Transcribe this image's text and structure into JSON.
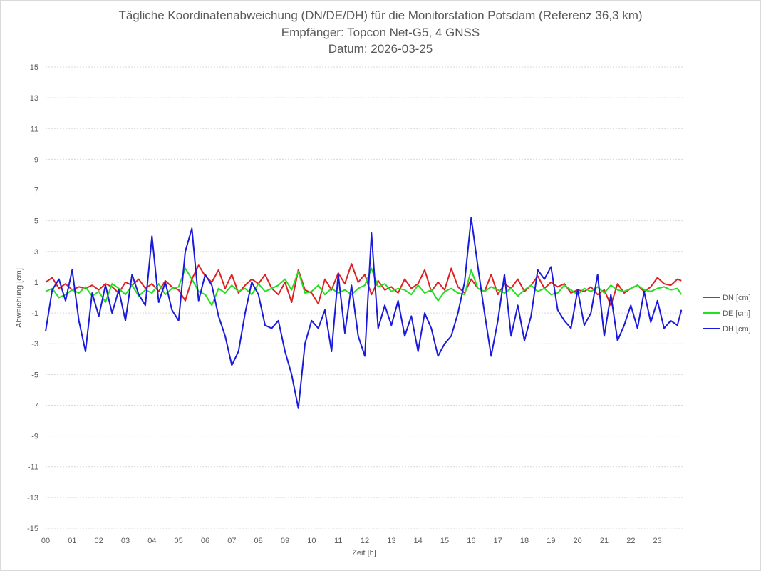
{
  "chart_data": {
    "type": "line",
    "title": "Tägliche Koordinatenabweichung (DN/DE/DH) für die Monitorstation Potsdam (Referenz 36,3 km)",
    "subtitle": "Empfänger: Topcon Net-G5, 4 GNSS",
    "date_line": "Datum: 2026-03-25",
    "xlabel": "Zeit [h]",
    "ylabel": "Abweichung [cm]",
    "xlim": [
      0,
      24
    ],
    "ylim": [
      -15,
      15
    ],
    "y_ticks": [
      15,
      13,
      11,
      9,
      7,
      5,
      3,
      1,
      -1,
      -3,
      -5,
      -7,
      -9,
      -11,
      -13,
      -15
    ],
    "x_tick_labels": [
      "00",
      "01",
      "02",
      "03",
      "04",
      "05",
      "06",
      "07",
      "08",
      "09",
      "10",
      "11",
      "12",
      "13",
      "14",
      "15",
      "16",
      "17",
      "18",
      "19",
      "20",
      "21",
      "22",
      "23"
    ],
    "grid": true,
    "legend_position": "right",
    "x": [
      0,
      0.25,
      0.5,
      0.75,
      1,
      1.25,
      1.5,
      1.75,
      2,
      2.25,
      2.5,
      2.75,
      3,
      3.25,
      3.5,
      3.75,
      4,
      4.25,
      4.5,
      4.75,
      5,
      5.25,
      5.5,
      5.75,
      6,
      6.25,
      6.5,
      6.75,
      7,
      7.25,
      7.5,
      7.75,
      8,
      8.25,
      8.5,
      8.75,
      9,
      9.25,
      9.5,
      9.75,
      10,
      10.25,
      10.5,
      10.75,
      11,
      11.25,
      11.5,
      11.75,
      12,
      12.25,
      12.5,
      12.75,
      13,
      13.25,
      13.5,
      13.75,
      14,
      14.25,
      14.5,
      14.75,
      15,
      15.25,
      15.5,
      15.75,
      16,
      16.25,
      16.5,
      16.75,
      17,
      17.25,
      17.5,
      17.75,
      18,
      18.25,
      18.5,
      18.75,
      19,
      19.25,
      19.5,
      19.75,
      20,
      20.25,
      20.5,
      20.75,
      21,
      21.25,
      21.5,
      21.75,
      22,
      22.25,
      22.5,
      22.75,
      23,
      23.25,
      23.5,
      23.75,
      23.9
    ],
    "series": [
      {
        "name": "DN [cm]",
        "color": "#e02020",
        "values": [
          1.0,
          1.3,
          0.6,
          0.9,
          0.5,
          0.7,
          0.6,
          0.8,
          0.5,
          0.9,
          0.7,
          0.3,
          1.0,
          0.8,
          1.2,
          0.6,
          0.9,
          0.4,
          1.1,
          0.7,
          0.5,
          -0.2,
          1.2,
          2.1,
          1.4,
          1.0,
          1.8,
          0.6,
          1.5,
          0.3,
          0.8,
          1.2,
          0.9,
          1.5,
          0.6,
          0.2,
          1.0,
          -0.3,
          1.8,
          0.5,
          0.3,
          -0.4,
          1.2,
          0.5,
          1.6,
          0.9,
          2.2,
          1.0,
          1.5,
          0.2,
          1.1,
          0.5,
          0.7,
          0.3,
          1.2,
          0.6,
          0.9,
          1.8,
          0.4,
          1.0,
          0.5,
          1.9,
          0.7,
          0.3,
          1.2,
          0.6,
          0.4,
          1.5,
          0.2,
          0.9,
          0.6,
          1.2,
          0.4,
          0.8,
          1.4,
          0.6,
          1.0,
          0.7,
          0.9,
          0.3,
          0.5,
          0.4,
          0.7,
          0.2,
          0.5,
          -0.5,
          0.9,
          0.3,
          0.6,
          0.8,
          0.4,
          0.7,
          1.3,
          0.9,
          0.8,
          1.2,
          1.1
        ]
      },
      {
        "name": "DE [cm]",
        "color": "#20e020",
        "values": [
          0.4,
          0.6,
          0.0,
          0.2,
          0.5,
          0.3,
          0.7,
          0.1,
          0.4,
          -0.3,
          0.9,
          0.6,
          0.2,
          0.8,
          0.1,
          0.5,
          0.3,
          0.9,
          0.2,
          0.6,
          0.7,
          1.9,
          1.2,
          0.4,
          0.2,
          -0.5,
          0.6,
          0.3,
          0.8,
          0.4,
          0.6,
          0.2,
          0.9,
          0.4,
          0.6,
          0.8,
          1.2,
          0.5,
          1.7,
          0.3,
          0.4,
          0.8,
          0.2,
          0.6,
          0.3,
          0.5,
          0.2,
          0.6,
          0.8,
          1.9,
          0.7,
          0.9,
          0.4,
          0.6,
          0.5,
          0.2,
          0.8,
          0.3,
          0.5,
          -0.2,
          0.4,
          0.6,
          0.3,
          0.2,
          1.8,
          0.6,
          0.4,
          0.7,
          0.5,
          0.3,
          0.6,
          0.1,
          0.5,
          0.8,
          0.4,
          0.6,
          0.2,
          0.3,
          0.8,
          0.5,
          0.2,
          0.6,
          0.4,
          0.7,
          0.3,
          0.8,
          0.5,
          0.4,
          0.6,
          0.8,
          0.5,
          0.4,
          0.6,
          0.7,
          0.5,
          0.6,
          0.2
        ]
      },
      {
        "name": "DH [cm]",
        "color": "#1a1adc",
        "values": [
          -2.2,
          0.5,
          1.2,
          -0.2,
          1.8,
          -1.5,
          -3.5,
          0.3,
          -1.2,
          0.8,
          -1.0,
          0.5,
          -1.5,
          1.5,
          0.2,
          -0.5,
          4.0,
          -0.3,
          1.0,
          -0.8,
          -1.5,
          3.0,
          4.5,
          -0.2,
          1.5,
          0.8,
          -1.2,
          -2.5,
          -4.4,
          -3.5,
          -1.0,
          1.0,
          0.2,
          -1.8,
          -2.0,
          -1.5,
          -3.5,
          -5.0,
          -7.2,
          -3.0,
          -1.5,
          -2.0,
          -0.8,
          -3.5,
          1.5,
          -2.3,
          0.8,
          -2.5,
          -3.8,
          4.2,
          -2.0,
          -0.5,
          -1.8,
          -0.2,
          -2.5,
          -1.2,
          -3.5,
          -1.0,
          -2.0,
          -3.8,
          -3.0,
          -2.5,
          -1.0,
          1.0,
          5.2,
          2.0,
          -1.0,
          -3.8,
          -1.5,
          1.5,
          -2.5,
          -0.5,
          -2.8,
          -1.2,
          1.8,
          1.2,
          2.0,
          -0.8,
          -1.5,
          -2.0,
          0.5,
          -1.8,
          -1.0,
          1.5,
          -2.5,
          0.2,
          -2.8,
          -1.8,
          -0.5,
          -2.0,
          0.4,
          -1.6,
          -0.2,
          -2.0,
          -1.5,
          -1.8,
          -0.8
        ]
      }
    ]
  }
}
